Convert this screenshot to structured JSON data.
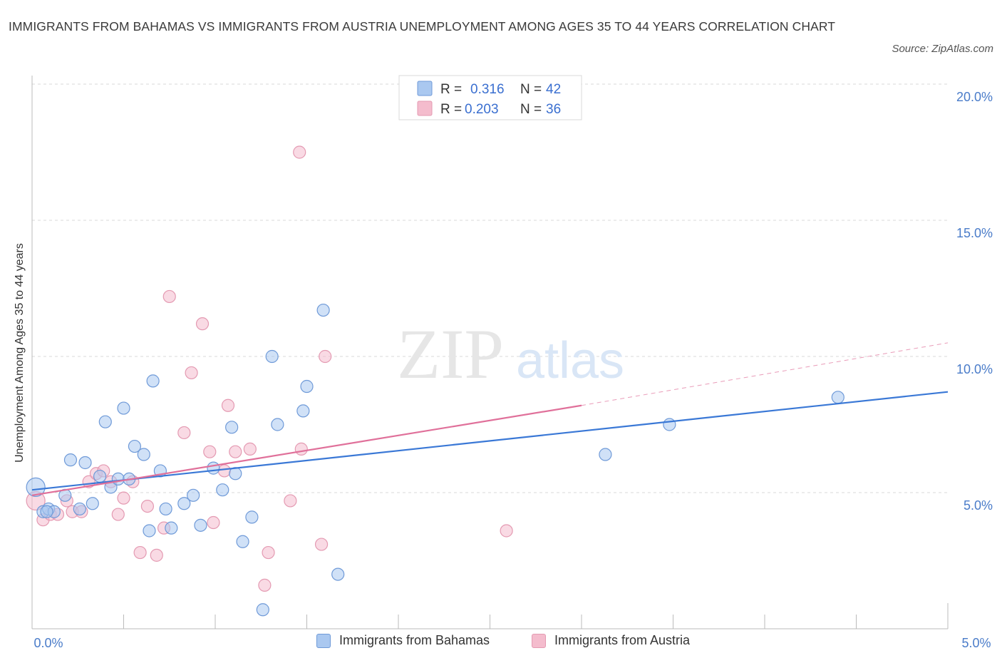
{
  "header": {
    "title": "IMMIGRANTS FROM BAHAMAS VS IMMIGRANTS FROM AUSTRIA UNEMPLOYMENT AMONG AGES 35 TO 44 YEARS CORRELATION CHART",
    "source": "Source: ZipAtlas.com"
  },
  "watermark": {
    "zip": "ZIP",
    "atlas": "atlas"
  },
  "colors": {
    "bahamas_fill": "#aac8f0",
    "bahamas_stroke": "#6f9ad8",
    "bahamas_line": "#3a78d6",
    "austria_fill": "#f4bccd",
    "austria_stroke": "#e49ab2",
    "austria_line": "#e0709a",
    "grid": "#d8d8d8",
    "tick_text": "#4a7cc9"
  },
  "stats_legend": {
    "r_label": "R =",
    "n_label": "N =",
    "rows": [
      {
        "series": "bahamas",
        "r": "0.316",
        "n": "42"
      },
      {
        "series": "austria",
        "r": "0.203",
        "n": "36"
      }
    ]
  },
  "bottom_legend": {
    "bahamas": "Immigrants from Bahamas",
    "austria": "Immigrants from Austria"
  },
  "chart_data": {
    "type": "scatter",
    "title": "IMMIGRANTS FROM BAHAMAS VS IMMIGRANTS FROM AUSTRIA UNEMPLOYMENT AMONG AGES 35 TO 44 YEARS CORRELATION CHART",
    "xlabel": "",
    "ylabel": "Unemployment Among Ages 35 to 44 years",
    "xlim": [
      0,
      5
    ],
    "ylim": [
      0,
      20
    ],
    "x_tick_labels": [
      "0.0%",
      "5.0%"
    ],
    "y_ticks": [
      5,
      10,
      15,
      20
    ],
    "y_tick_labels": [
      "5.0%",
      "10.0%",
      "15.0%",
      "20.0%"
    ],
    "grid": true,
    "series": [
      {
        "name": "Immigrants from Bahamas",
        "key": "bahamas",
        "trend": {
          "x0": 0,
          "y0": 5.1,
          "x1": 5.0,
          "y1": 8.7
        },
        "points": [
          {
            "x": 0.02,
            "y": 5.2,
            "big": true
          },
          {
            "x": 0.06,
            "y": 4.3
          },
          {
            "x": 0.09,
            "y": 4.4
          },
          {
            "x": 0.12,
            "y": 4.3
          },
          {
            "x": 0.18,
            "y": 4.9
          },
          {
            "x": 0.21,
            "y": 6.2
          },
          {
            "x": 0.26,
            "y": 4.4
          },
          {
            "x": 0.29,
            "y": 6.1
          },
          {
            "x": 0.33,
            "y": 4.6
          },
          {
            "x": 0.37,
            "y": 5.6
          },
          {
            "x": 0.4,
            "y": 7.6
          },
          {
            "x": 0.43,
            "y": 5.2
          },
          {
            "x": 0.47,
            "y": 5.5
          },
          {
            "x": 0.5,
            "y": 8.1
          },
          {
            "x": 0.53,
            "y": 5.5
          },
          {
            "x": 0.56,
            "y": 6.7
          },
          {
            "x": 0.61,
            "y": 6.4
          },
          {
            "x": 0.64,
            "y": 3.6
          },
          {
            "x": 0.66,
            "y": 9.1
          },
          {
            "x": 0.7,
            "y": 5.8
          },
          {
            "x": 0.73,
            "y": 4.4
          },
          {
            "x": 0.76,
            "y": 3.7
          },
          {
            "x": 0.83,
            "y": 4.6
          },
          {
            "x": 0.88,
            "y": 4.9
          },
          {
            "x": 0.92,
            "y": 3.8
          },
          {
            "x": 0.99,
            "y": 5.9
          },
          {
            "x": 1.04,
            "y": 5.1
          },
          {
            "x": 1.09,
            "y": 7.4
          },
          {
            "x": 1.11,
            "y": 5.7
          },
          {
            "x": 1.15,
            "y": 3.2
          },
          {
            "x": 1.2,
            "y": 4.1
          },
          {
            "x": 1.26,
            "y": 0.7
          },
          {
            "x": 1.31,
            "y": 10.0
          },
          {
            "x": 1.34,
            "y": 7.5
          },
          {
            "x": 1.48,
            "y": 8.0
          },
          {
            "x": 1.5,
            "y": 8.9
          },
          {
            "x": 1.59,
            "y": 11.7
          },
          {
            "x": 1.67,
            "y": 2.0
          },
          {
            "x": 3.13,
            "y": 6.4
          },
          {
            "x": 3.48,
            "y": 7.5
          },
          {
            "x": 4.4,
            "y": 8.5
          },
          {
            "x": 0.08,
            "y": 4.3
          }
        ]
      },
      {
        "name": "Immigrants from Austria",
        "key": "austria",
        "trend": {
          "x0": 0,
          "y0": 4.9,
          "x1": 3.0,
          "y1": 8.2,
          "dashed_to_x": 5.0,
          "dashed_to_y": 10.5
        },
        "points": [
          {
            "x": 0.02,
            "y": 4.7,
            "big": true
          },
          {
            "x": 0.06,
            "y": 4.0
          },
          {
            "x": 0.1,
            "y": 4.2
          },
          {
            "x": 0.14,
            "y": 4.2
          },
          {
            "x": 0.19,
            "y": 4.7
          },
          {
            "x": 0.22,
            "y": 4.3
          },
          {
            "x": 0.27,
            "y": 4.3
          },
          {
            "x": 0.31,
            "y": 5.4
          },
          {
            "x": 0.35,
            "y": 5.7
          },
          {
            "x": 0.39,
            "y": 5.8
          },
          {
            "x": 0.43,
            "y": 5.4
          },
          {
            "x": 0.47,
            "y": 4.2
          },
          {
            "x": 0.5,
            "y": 4.8
          },
          {
            "x": 0.55,
            "y": 5.4
          },
          {
            "x": 0.59,
            "y": 2.8
          },
          {
            "x": 0.63,
            "y": 4.5
          },
          {
            "x": 0.68,
            "y": 2.7
          },
          {
            "x": 0.72,
            "y": 3.7
          },
          {
            "x": 0.75,
            "y": 12.2
          },
          {
            "x": 0.83,
            "y": 7.2
          },
          {
            "x": 0.87,
            "y": 9.4
          },
          {
            "x": 0.93,
            "y": 11.2
          },
          {
            "x": 0.97,
            "y": 6.5
          },
          {
            "x": 0.99,
            "y": 3.9
          },
          {
            "x": 1.05,
            "y": 5.8
          },
          {
            "x": 1.07,
            "y": 8.2
          },
          {
            "x": 1.11,
            "y": 6.5
          },
          {
            "x": 1.19,
            "y": 6.6
          },
          {
            "x": 1.27,
            "y": 1.6
          },
          {
            "x": 1.29,
            "y": 2.8
          },
          {
            "x": 1.41,
            "y": 4.7
          },
          {
            "x": 1.46,
            "y": 17.5
          },
          {
            "x": 1.47,
            "y": 6.6
          },
          {
            "x": 1.58,
            "y": 3.1
          },
          {
            "x": 1.6,
            "y": 10.0
          },
          {
            "x": 2.59,
            "y": 3.6
          }
        ]
      }
    ]
  }
}
